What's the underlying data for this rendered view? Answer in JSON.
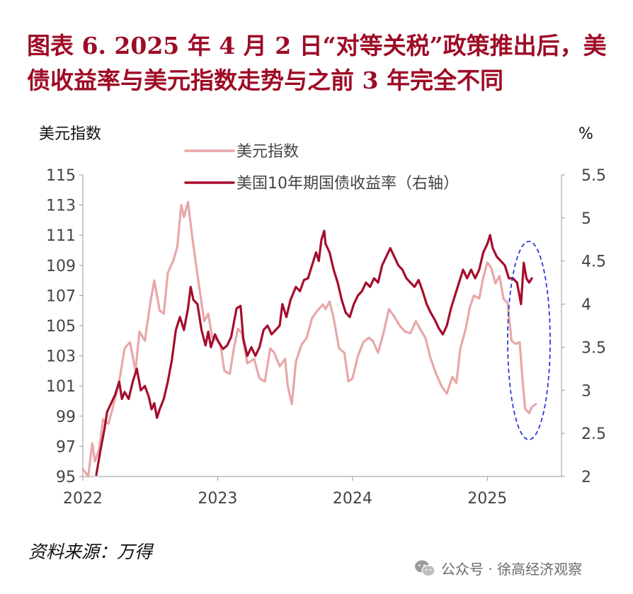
{
  "figure": {
    "title_line1": "图表 6.   2025 年 4 月 2 日“对等关税”政策推出后，美",
    "title_line2": "债收益率与美元指数走势与之前 3 年完全不同",
    "source": "资料来源：万得",
    "watermark": "公众号 · 徐高经济观察"
  },
  "colors": {
    "title": "#9e0b26",
    "dxy_line": "#e8a7a8",
    "yield_line": "#a50d2c",
    "ellipse": "#2b3bd6",
    "axis": "#999999"
  },
  "chart_data": {
    "type": "line",
    "left_axis_label": "美元指数",
    "right_axis_label": "%",
    "left_ylim": [
      95,
      115
    ],
    "left_ticks": [
      "115",
      "113",
      "111",
      "109",
      "107",
      "105",
      "103",
      "101",
      "99",
      "97",
      "95"
    ],
    "right_ylim": [
      2,
      5.5
    ],
    "right_ticks": [
      "5.5",
      "5",
      "4.5",
      "4",
      "3.5",
      "3",
      "2.5",
      "2"
    ],
    "xlim": [
      2022.0,
      2025.55
    ],
    "x_ticks": [
      "2022",
      "2023",
      "2024",
      "2025"
    ],
    "grid": false,
    "legend_position": "top-center",
    "annotation": "dashed ellipse highlighting April 2025 divergence",
    "series": [
      {
        "name": "美元指数",
        "axis": "left",
        "points": [
          [
            2022.0,
            95.5
          ],
          [
            2022.04,
            95.0
          ],
          [
            2022.07,
            97.2
          ],
          [
            2022.09,
            96.0
          ],
          [
            2022.12,
            96.8
          ],
          [
            2022.15,
            98.8
          ],
          [
            2022.19,
            98.5
          ],
          [
            2022.22,
            99.5
          ],
          [
            2022.27,
            101.3
          ],
          [
            2022.31,
            103.5
          ],
          [
            2022.35,
            103.9
          ],
          [
            2022.39,
            102.0
          ],
          [
            2022.42,
            104.6
          ],
          [
            2022.46,
            104.0
          ],
          [
            2022.5,
            106.5
          ],
          [
            2022.53,
            108.0
          ],
          [
            2022.57,
            106.0
          ],
          [
            2022.6,
            105.8
          ],
          [
            2022.63,
            108.5
          ],
          [
            2022.67,
            109.3
          ],
          [
            2022.7,
            110.2
          ],
          [
            2022.73,
            113.0
          ],
          [
            2022.75,
            112.2
          ],
          [
            2022.78,
            113.2
          ],
          [
            2022.81,
            111.0
          ],
          [
            2022.84,
            109.0
          ],
          [
            2022.88,
            106.5
          ],
          [
            2022.9,
            105.3
          ],
          [
            2022.93,
            105.8
          ],
          [
            2022.96,
            104.2
          ],
          [
            2023.0,
            104.0
          ],
          [
            2023.02,
            103.8
          ],
          [
            2023.05,
            102.0
          ],
          [
            2023.09,
            101.8
          ],
          [
            2023.12,
            103.5
          ],
          [
            2023.15,
            104.8
          ],
          [
            2023.18,
            104.5
          ],
          [
            2023.22,
            102.5
          ],
          [
            2023.27,
            102.8
          ],
          [
            2023.31,
            101.5
          ],
          [
            2023.35,
            101.3
          ],
          [
            2023.39,
            103.5
          ],
          [
            2023.42,
            103.2
          ],
          [
            2023.46,
            102.3
          ],
          [
            2023.5,
            102.8
          ],
          [
            2023.52,
            101.0
          ],
          [
            2023.55,
            99.8
          ],
          [
            2023.58,
            102.6
          ],
          [
            2023.62,
            103.7
          ],
          [
            2023.66,
            104.2
          ],
          [
            2023.7,
            105.5
          ],
          [
            2023.74,
            106.0
          ],
          [
            2023.78,
            106.4
          ],
          [
            2023.8,
            106.1
          ],
          [
            2023.83,
            106.6
          ],
          [
            2023.86,
            105.5
          ],
          [
            2023.9,
            103.5
          ],
          [
            2023.94,
            103.2
          ],
          [
            2023.97,
            101.3
          ],
          [
            2024.0,
            101.5
          ],
          [
            2024.04,
            103.0
          ],
          [
            2024.08,
            103.9
          ],
          [
            2024.12,
            104.2
          ],
          [
            2024.15,
            104.0
          ],
          [
            2024.19,
            103.2
          ],
          [
            2024.23,
            104.5
          ],
          [
            2024.27,
            106.1
          ],
          [
            2024.31,
            105.6
          ],
          [
            2024.35,
            105.0
          ],
          [
            2024.39,
            104.6
          ],
          [
            2024.43,
            104.5
          ],
          [
            2024.47,
            105.3
          ],
          [
            2024.5,
            104.8
          ],
          [
            2024.54,
            104.2
          ],
          [
            2024.58,
            102.8
          ],
          [
            2024.62,
            101.8
          ],
          [
            2024.66,
            101.0
          ],
          [
            2024.7,
            100.5
          ],
          [
            2024.74,
            101.6
          ],
          [
            2024.77,
            101.2
          ],
          [
            2024.8,
            103.5
          ],
          [
            2024.84,
            104.8
          ],
          [
            2024.87,
            106.2
          ],
          [
            2024.9,
            107.0
          ],
          [
            2024.94,
            106.8
          ],
          [
            2024.97,
            108.2
          ],
          [
            2025.0,
            109.2
          ],
          [
            2025.03,
            108.8
          ],
          [
            2025.06,
            107.8
          ],
          [
            2025.09,
            108.3
          ],
          [
            2025.12,
            106.8
          ],
          [
            2025.15,
            106.5
          ],
          [
            2025.18,
            104.0
          ],
          [
            2025.21,
            103.8
          ],
          [
            2025.24,
            103.9
          ],
          [
            2025.26,
            101.5
          ],
          [
            2025.28,
            99.5
          ],
          [
            2025.31,
            99.2
          ],
          [
            2025.33,
            99.6
          ],
          [
            2025.36,
            99.8
          ]
        ]
      },
      {
        "name": "美国10年期国债收益率（右轴）",
        "axis": "right",
        "points": [
          [
            2022.1,
            2.02
          ],
          [
            2022.13,
            2.3
          ],
          [
            2022.16,
            2.55
          ],
          [
            2022.18,
            2.75
          ],
          [
            2022.21,
            2.85
          ],
          [
            2022.24,
            2.95
          ],
          [
            2022.27,
            3.1
          ],
          [
            2022.29,
            2.9
          ],
          [
            2022.31,
            2.98
          ],
          [
            2022.34,
            2.9
          ],
          [
            2022.37,
            3.1
          ],
          [
            2022.4,
            3.25
          ],
          [
            2022.43,
            3.0
          ],
          [
            2022.46,
            3.05
          ],
          [
            2022.49,
            2.92
          ],
          [
            2022.51,
            2.78
          ],
          [
            2022.53,
            2.85
          ],
          [
            2022.55,
            2.68
          ],
          [
            2022.57,
            2.78
          ],
          [
            2022.6,
            2.9
          ],
          [
            2022.63,
            3.1
          ],
          [
            2022.66,
            3.35
          ],
          [
            2022.69,
            3.7
          ],
          [
            2022.72,
            3.85
          ],
          [
            2022.75,
            3.7
          ],
          [
            2022.78,
            3.95
          ],
          [
            2022.8,
            4.2
          ],
          [
            2022.82,
            4.05
          ],
          [
            2022.85,
            4.0
          ],
          [
            2022.88,
            3.7
          ],
          [
            2022.91,
            3.52
          ],
          [
            2022.93,
            3.68
          ],
          [
            2022.95,
            3.5
          ],
          [
            2022.98,
            3.65
          ],
          [
            2023.01,
            3.55
          ],
          [
            2023.04,
            3.48
          ],
          [
            2023.07,
            3.52
          ],
          [
            2023.1,
            3.62
          ],
          [
            2023.14,
            3.95
          ],
          [
            2023.17,
            3.98
          ],
          [
            2023.19,
            3.6
          ],
          [
            2023.22,
            3.4
          ],
          [
            2023.25,
            3.5
          ],
          [
            2023.28,
            3.4
          ],
          [
            2023.31,
            3.5
          ],
          [
            2023.34,
            3.7
          ],
          [
            2023.37,
            3.75
          ],
          [
            2023.4,
            3.65
          ],
          [
            2023.43,
            3.7
          ],
          [
            2023.46,
            3.75
          ],
          [
            2023.48,
            4.0
          ],
          [
            2023.51,
            3.85
          ],
          [
            2023.54,
            4.05
          ],
          [
            2023.58,
            4.2
          ],
          [
            2023.61,
            4.15
          ],
          [
            2023.64,
            4.28
          ],
          [
            2023.67,
            4.3
          ],
          [
            2023.7,
            4.45
          ],
          [
            2023.73,
            4.6
          ],
          [
            2023.75,
            4.5
          ],
          [
            2023.77,
            4.75
          ],
          [
            2023.79,
            4.85
          ],
          [
            2023.8,
            4.7
          ],
          [
            2023.83,
            4.6
          ],
          [
            2023.86,
            4.4
          ],
          [
            2023.89,
            4.25
          ],
          [
            2023.92,
            4.05
          ],
          [
            2023.95,
            3.9
          ],
          [
            2023.98,
            3.85
          ],
          [
            2024.01,
            4.0
          ],
          [
            2024.04,
            4.1
          ],
          [
            2024.07,
            4.15
          ],
          [
            2024.1,
            4.25
          ],
          [
            2024.13,
            4.2
          ],
          [
            2024.16,
            4.3
          ],
          [
            2024.19,
            4.25
          ],
          [
            2024.22,
            4.45
          ],
          [
            2024.25,
            4.55
          ],
          [
            2024.28,
            4.65
          ],
          [
            2024.31,
            4.55
          ],
          [
            2024.34,
            4.45
          ],
          [
            2024.37,
            4.4
          ],
          [
            2024.4,
            4.3
          ],
          [
            2024.43,
            4.25
          ],
          [
            2024.46,
            4.2
          ],
          [
            2024.49,
            4.28
          ],
          [
            2024.52,
            4.15
          ],
          [
            2024.55,
            4.0
          ],
          [
            2024.58,
            3.9
          ],
          [
            2024.61,
            3.82
          ],
          [
            2024.64,
            3.72
          ],
          [
            2024.67,
            3.65
          ],
          [
            2024.7,
            3.75
          ],
          [
            2024.73,
            3.95
          ],
          [
            2024.76,
            4.1
          ],
          [
            2024.79,
            4.25
          ],
          [
            2024.82,
            4.4
          ],
          [
            2024.85,
            4.3
          ],
          [
            2024.88,
            4.4
          ],
          [
            2024.91,
            4.3
          ],
          [
            2024.94,
            4.4
          ],
          [
            2024.97,
            4.6
          ],
          [
            2025.0,
            4.7
          ],
          [
            2025.02,
            4.8
          ],
          [
            2025.04,
            4.65
          ],
          [
            2025.07,
            4.55
          ],
          [
            2025.1,
            4.5
          ],
          [
            2025.13,
            4.45
          ],
          [
            2025.16,
            4.3
          ],
          [
            2025.19,
            4.3
          ],
          [
            2025.22,
            4.25
          ],
          [
            2025.25,
            4.0
          ],
          [
            2025.27,
            4.48
          ],
          [
            2025.29,
            4.3
          ],
          [
            2025.31,
            4.25
          ],
          [
            2025.33,
            4.3
          ]
        ]
      }
    ]
  }
}
